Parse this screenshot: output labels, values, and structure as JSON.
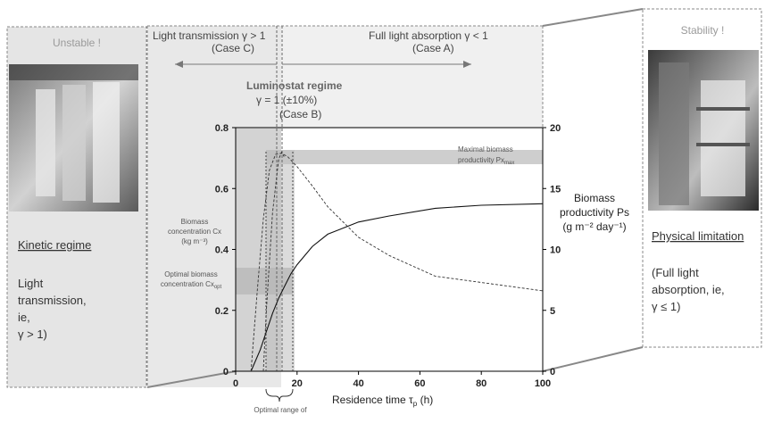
{
  "left_panel": {
    "title": "Unstable !",
    "regime": "Kinetic regime",
    "desc_lines": [
      "Light",
      "transmission,",
      "ie,",
      "γ > 1)"
    ]
  },
  "right_panel": {
    "title": "Stability !",
    "regime": "Physical limitation",
    "desc_lines": [
      "(Full light",
      "absorption, ie,",
      "γ ≤ 1)"
    ]
  },
  "annotations": {
    "light_transmission": "Light transmission γ > 1",
    "case_c": "(Case C)",
    "full_absorption": "Full light absorption γ < 1",
    "case_a": "(Case A)",
    "luminostat_title": "Luminostat regime",
    "luminostat_gamma": "γ = 1 (±10%)",
    "case_b": "(Case B)",
    "maximal_line1": "Maximal biomass",
    "maximal_line2": "productivity Px",
    "maximal_sub": "max",
    "optimal_range": "Optimal range of"
  },
  "chart_data": {
    "type": "line",
    "xlabel": "Residence time τ",
    "xlabel_sub": "p",
    "xlabel_unit": " (h)",
    "xlim": [
      0,
      100
    ],
    "x_ticks": [
      0,
      20,
      40,
      60,
      80,
      100
    ],
    "ylabel_left_lines": [
      "Biomass",
      "concentration Cx",
      "(kg m⁻³)"
    ],
    "ylim_left": [
      0,
      0.8
    ],
    "y_ticks_left": [
      0,
      0.2,
      0.4,
      0.6,
      0.8
    ],
    "ylabel_right_lines": [
      "Biomass",
      "productivity Ps",
      "(g m⁻² day⁻¹)"
    ],
    "ylim_right": [
      0,
      20
    ],
    "y_ticks_right": [
      0,
      5,
      10,
      15,
      20
    ],
    "optimal_conc_lines": [
      "Optimal biomass",
      "concentration Cx"
    ],
    "optimal_conc_sub": "opt",
    "series": [
      {
        "axis": "left",
        "style": "solid",
        "x": [
          5,
          8,
          10,
          12,
          14,
          16,
          18,
          20,
          25,
          30,
          40,
          50,
          65,
          80,
          100
        ],
        "y": [
          0.0,
          0.07,
          0.13,
          0.19,
          0.24,
          0.28,
          0.32,
          0.35,
          0.41,
          0.45,
          0.49,
          0.51,
          0.535,
          0.545,
          0.55
        ]
      },
      {
        "axis": "right",
        "style": "dashed",
        "x": [
          5,
          7,
          9,
          11,
          13,
          15,
          17,
          20,
          25,
          30,
          40,
          50,
          65,
          100
        ],
        "y": [
          0.0,
          6.5,
          12.5,
          16.5,
          17.8,
          17.9,
          17.6,
          16.8,
          15.2,
          13.5,
          11.0,
          9.5,
          7.8,
          6.6
        ]
      },
      {
        "axis": "right",
        "style": "dashed",
        "x": [
          9,
          10,
          12,
          14,
          15,
          16
        ],
        "y": [
          0.0,
          5.0,
          13.0,
          17.4,
          18.0,
          17.5
        ]
      }
    ]
  }
}
